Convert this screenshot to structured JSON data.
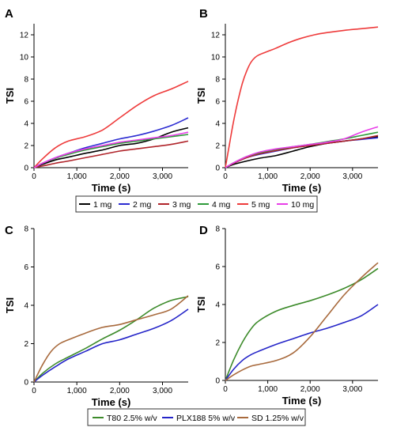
{
  "panel_letters": [
    "A",
    "B",
    "C",
    "D"
  ],
  "legends": [
    {
      "entries": [
        {
          "label": "1 mg",
          "color": "#000000"
        },
        {
          "label": "2 mg",
          "color": "#2b2bd1"
        },
        {
          "label": "3 mg",
          "color": "#b0242a"
        },
        {
          "label": "4 mg",
          "color": "#2e9a3a"
        },
        {
          "label": "5 mg",
          "color": "#ee3b3b"
        },
        {
          "label": "10 mg",
          "color": "#e83ee8"
        }
      ]
    },
    {
      "entries": [
        {
          "label": "T80 2.5% w/v",
          "color": "#3d8b2b"
        },
        {
          "label": "PLX188 5% w/v",
          "color": "#2525c8"
        },
        {
          "label": "SD 1.25% w/v",
          "color": "#a86a3d"
        }
      ]
    }
  ],
  "chart_data": [
    {
      "panel": "A",
      "type": "line",
      "xlabel": "Time (s)",
      "ylabel": "TSI",
      "xlim": [
        0,
        3600
      ],
      "ylim": [
        0,
        13
      ],
      "xticks": [
        0,
        1000,
        2000,
        3000
      ],
      "xtick_labels": [
        "0",
        "1,000",
        "2,000",
        "3,000"
      ],
      "yticks": [
        0,
        2,
        4,
        6,
        8,
        10,
        12
      ],
      "ytick_labels": [
        "0",
        "2",
        "4",
        "6",
        "8",
        "10",
        "12"
      ],
      "series": [
        {
          "name": "1 mg",
          "color": "#000000",
          "x": [
            0,
            200,
            500,
            800,
            1200,
            1600,
            2000,
            2400,
            2800,
            3200,
            3600
          ],
          "y": [
            0,
            0.3,
            0.7,
            0.95,
            1.3,
            1.6,
            2.0,
            2.2,
            2.6,
            3.2,
            3.6
          ]
        },
        {
          "name": "2 mg",
          "color": "#2b2bd1",
          "x": [
            0,
            200,
            500,
            800,
            1200,
            1600,
            2000,
            2400,
            2800,
            3200,
            3600
          ],
          "y": [
            0,
            0.4,
            0.9,
            1.3,
            1.8,
            2.2,
            2.6,
            2.9,
            3.3,
            3.8,
            4.5
          ]
        },
        {
          "name": "3 mg",
          "color": "#b0242a",
          "x": [
            0,
            200,
            500,
            800,
            1200,
            1600,
            2000,
            2400,
            2800,
            3200,
            3600
          ],
          "y": [
            0,
            0.15,
            0.4,
            0.6,
            0.9,
            1.2,
            1.5,
            1.7,
            1.9,
            2.1,
            2.4
          ]
        },
        {
          "name": "4 mg",
          "color": "#2e9a3a",
          "x": [
            0,
            200,
            500,
            800,
            1200,
            1600,
            2000,
            2400,
            2800,
            3200,
            3600
          ],
          "y": [
            0,
            0.4,
            0.85,
            1.2,
            1.6,
            1.9,
            2.2,
            2.4,
            2.6,
            2.8,
            3.0
          ]
        },
        {
          "name": "5 mg",
          "color": "#ee3b3b",
          "x": [
            0,
            200,
            500,
            800,
            1200,
            1600,
            2000,
            2400,
            2800,
            3200,
            3600
          ],
          "y": [
            0,
            0.8,
            1.8,
            2.4,
            2.8,
            3.4,
            4.5,
            5.6,
            6.5,
            7.1,
            7.8
          ]
        },
        {
          "name": "10 mg",
          "color": "#e83ee8",
          "x": [
            0,
            200,
            500,
            800,
            1200,
            1600,
            2000,
            2400,
            2800,
            3200,
            3600
          ],
          "y": [
            0,
            0.4,
            0.9,
            1.3,
            1.7,
            2.0,
            2.3,
            2.5,
            2.7,
            2.9,
            3.2
          ]
        }
      ]
    },
    {
      "panel": "B",
      "type": "line",
      "xlabel": "Time (s)",
      "ylabel": "TSI",
      "xlim": [
        0,
        3600
      ],
      "ylim": [
        0,
        13
      ],
      "xticks": [
        0,
        1000,
        2000,
        3000
      ],
      "xtick_labels": [
        "0",
        "1,000",
        "2,000",
        "3,000"
      ],
      "yticks": [
        0,
        2,
        4,
        6,
        8,
        10,
        12
      ],
      "ytick_labels": [
        "0",
        "2",
        "4",
        "6",
        "8",
        "10",
        "12"
      ],
      "series": [
        {
          "name": "1 mg",
          "color": "#000000",
          "x": [
            0,
            200,
            500,
            800,
            1200,
            1600,
            2000,
            2400,
            2800,
            3200,
            3600
          ],
          "y": [
            0,
            0.3,
            0.6,
            0.85,
            1.1,
            1.5,
            1.9,
            2.2,
            2.4,
            2.6,
            2.8
          ]
        },
        {
          "name": "2 mg",
          "color": "#2b2bd1",
          "x": [
            0,
            200,
            500,
            800,
            1200,
            1600,
            2000,
            2400,
            2800,
            3200,
            3600
          ],
          "y": [
            0,
            0.4,
            0.9,
            1.2,
            1.5,
            1.8,
            2.0,
            2.2,
            2.4,
            2.55,
            2.7
          ]
        },
        {
          "name": "3 mg",
          "color": "#b0242a",
          "x": [
            0,
            200,
            500,
            800,
            1200,
            1600,
            2000,
            2400,
            2800,
            3200,
            3600
          ],
          "y": [
            0,
            0.4,
            0.9,
            1.25,
            1.55,
            1.8,
            2.0,
            2.2,
            2.4,
            2.6,
            2.9
          ]
        },
        {
          "name": "4 mg",
          "color": "#2e9a3a",
          "x": [
            0,
            200,
            500,
            800,
            1200,
            1600,
            2000,
            2400,
            2800,
            3200,
            3600
          ],
          "y": [
            0,
            0.45,
            1.0,
            1.35,
            1.65,
            1.9,
            2.1,
            2.35,
            2.6,
            2.9,
            3.2
          ]
        },
        {
          "name": "5 mg",
          "color": "#ee3b3b",
          "x": [
            0,
            100,
            200,
            300,
            400,
            500,
            600,
            700,
            800,
            1000,
            1200,
            1500,
            1800,
            2100,
            2400,
            2800,
            3200,
            3600
          ],
          "y": [
            0,
            2.2,
            4.3,
            6.1,
            7.6,
            8.7,
            9.5,
            9.95,
            10.2,
            10.5,
            10.8,
            11.3,
            11.7,
            12.0,
            12.2,
            12.4,
            12.55,
            12.7
          ]
        },
        {
          "name": "10 mg",
          "color": "#e83ee8",
          "x": [
            0,
            200,
            500,
            800,
            1200,
            1600,
            2000,
            2400,
            2800,
            3200,
            3600
          ],
          "y": [
            0,
            0.45,
            1.0,
            1.4,
            1.7,
            1.9,
            2.1,
            2.3,
            2.6,
            3.2,
            3.7
          ]
        }
      ]
    },
    {
      "panel": "C",
      "type": "line",
      "xlabel": "Time (s)",
      "ylabel": "TSI",
      "xlim": [
        0,
        3600
      ],
      "ylim": [
        0,
        8
      ],
      "xticks": [
        0,
        1000,
        2000,
        3000
      ],
      "xtick_labels": [
        "0",
        "1,000",
        "2,000",
        "3,000"
      ],
      "yticks": [
        0,
        2,
        4,
        6,
        8
      ],
      "ytick_labels": [
        "0",
        "2",
        "4",
        "6",
        "8"
      ],
      "series": [
        {
          "name": "T80 2.5% w/v",
          "color": "#3d8b2b",
          "x": [
            0,
            200,
            500,
            800,
            1200,
            1600,
            2000,
            2400,
            2800,
            3200,
            3600
          ],
          "y": [
            0,
            0.45,
            0.95,
            1.3,
            1.75,
            2.25,
            2.7,
            3.25,
            3.85,
            4.25,
            4.45
          ]
        },
        {
          "name": "PLX188 5% w/v",
          "color": "#2525c8",
          "x": [
            0,
            200,
            500,
            800,
            1200,
            1600,
            2000,
            2400,
            2800,
            3200,
            3600
          ],
          "y": [
            0,
            0.35,
            0.8,
            1.2,
            1.6,
            2.0,
            2.2,
            2.5,
            2.8,
            3.2,
            3.8
          ]
        },
        {
          "name": "SD 1.25% w/v",
          "color": "#a86a3d",
          "x": [
            0,
            200,
            400,
            600,
            800,
            1200,
            1600,
            2000,
            2400,
            2800,
            3200,
            3600
          ],
          "y": [
            0,
            0.9,
            1.6,
            2.0,
            2.2,
            2.55,
            2.85,
            3.0,
            3.25,
            3.5,
            3.8,
            4.5
          ]
        }
      ]
    },
    {
      "panel": "D",
      "type": "line",
      "xlabel": "Time (s)",
      "ylabel": "TSI",
      "xlim": [
        0,
        3600
      ],
      "ylim": [
        0,
        8
      ],
      "xticks": [
        0,
        1000,
        2000,
        3000
      ],
      "xtick_labels": [
        "0",
        "1,000",
        "2,000",
        "3,000"
      ],
      "yticks": [
        0,
        2,
        4,
        6,
        8
      ],
      "ytick_labels": [
        "0",
        "2",
        "4",
        "6",
        "8"
      ],
      "series": [
        {
          "name": "T80 2.5% w/v",
          "color": "#3d8b2b",
          "x": [
            0,
            200,
            400,
            600,
            800,
            1200,
            1600,
            2000,
            2400,
            2800,
            3200,
            3600
          ],
          "y": [
            0,
            1.1,
            2.0,
            2.7,
            3.15,
            3.65,
            3.95,
            4.2,
            4.5,
            4.85,
            5.3,
            5.9
          ]
        },
        {
          "name": "PLX188 5% w/v",
          "color": "#2525c8",
          "x": [
            0,
            200,
            400,
            600,
            800,
            1200,
            1600,
            2000,
            2400,
            2800,
            3200,
            3600
          ],
          "y": [
            0,
            0.6,
            1.05,
            1.35,
            1.55,
            1.9,
            2.2,
            2.5,
            2.75,
            3.05,
            3.4,
            4.0
          ]
        },
        {
          "name": "SD 1.25% w/v",
          "color": "#a86a3d",
          "x": [
            0,
            200,
            400,
            600,
            800,
            1200,
            1600,
            2000,
            2400,
            2800,
            3200,
            3600
          ],
          "y": [
            0,
            0.3,
            0.55,
            0.75,
            0.85,
            1.05,
            1.45,
            2.3,
            3.4,
            4.5,
            5.4,
            6.2
          ]
        }
      ]
    }
  ]
}
